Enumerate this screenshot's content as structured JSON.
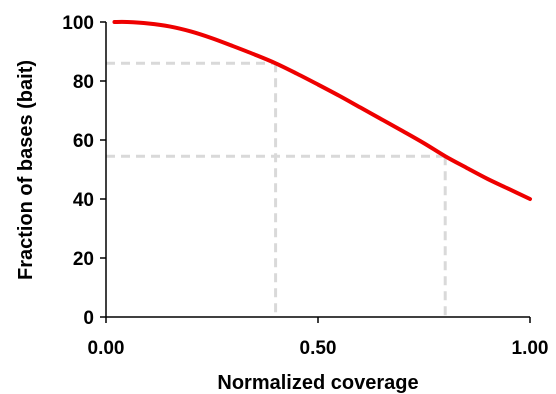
{
  "chart_data": {
    "type": "line",
    "xlabel": "Normalized coverage",
    "ylabel": "Fraction of bases (bait)",
    "xlim": [
      0,
      1
    ],
    "ylim": [
      0,
      100
    ],
    "x_ticks": [
      "0.00",
      "0.50",
      "1.00"
    ],
    "y_ticks": [
      "0",
      "20",
      "40",
      "60",
      "80",
      "100"
    ],
    "grid": false,
    "series": [
      {
        "color": "#ee0000",
        "x": [
          0.02,
          0.05,
          0.1,
          0.15,
          0.2,
          0.25,
          0.3,
          0.35,
          0.4,
          0.45,
          0.5,
          0.55,
          0.6,
          0.65,
          0.7,
          0.75,
          0.8,
          0.85,
          0.9,
          0.95,
          1.0
        ],
        "y": [
          100,
          100,
          99.5,
          98.5,
          96.8,
          94.5,
          91.8,
          89,
          86,
          82.5,
          78.8,
          75,
          71,
          67,
          63,
          58.9,
          54.5,
          50.6,
          46.8,
          43.4,
          40
        ]
      }
    ],
    "reference_lines": [
      {
        "x": 0.4,
        "y": 86
      },
      {
        "x": 0.8,
        "y": 54.5
      }
    ]
  }
}
